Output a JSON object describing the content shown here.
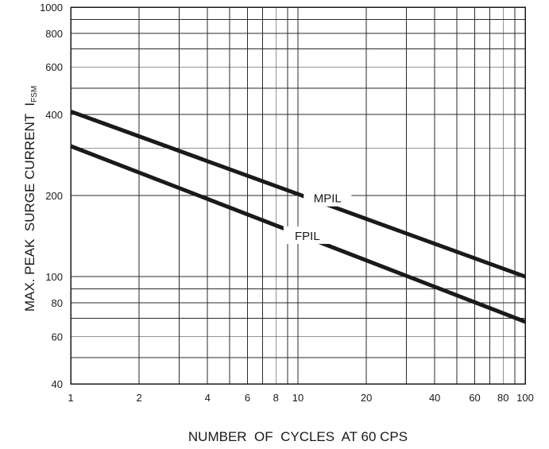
{
  "chart_data": {
    "type": "line",
    "title": "",
    "xlabel": "NUMBER  OF  CYCLES  AT 60 CPS",
    "ylabel": "MAX. PEAK  SURGE CURRENT  I",
    "ylabel_subscript": "FSM",
    "x_scale": "log",
    "y_scale": "log",
    "xlim": [
      1,
      100
    ],
    "ylim": [
      40,
      1000
    ],
    "x_ticks": [
      1,
      2,
      4,
      6,
      8,
      10,
      20,
      40,
      60,
      80,
      100
    ],
    "x_tick_labels": [
      "1",
      "2",
      "4",
      "6",
      "8",
      "10",
      "20",
      "40",
      "60",
      "80",
      "100"
    ],
    "y_ticks": [
      40,
      60,
      80,
      100,
      200,
      400,
      600,
      800,
      1000
    ],
    "y_tick_labels": [
      "40",
      "60",
      "80",
      "100",
      "200",
      "400",
      "600",
      "800",
      "1000"
    ],
    "x_grid": [
      1,
      2,
      3,
      4,
      5,
      6,
      7,
      8,
      9,
      10,
      20,
      30,
      40,
      50,
      60,
      70,
      80,
      90,
      100
    ],
    "y_grid": [
      40,
      50,
      60,
      70,
      80,
      90,
      100,
      200,
      300,
      400,
      500,
      600,
      700,
      800,
      900,
      1000
    ],
    "grid": true,
    "legend": "none",
    "series": [
      {
        "name": "MPIL",
        "x": [
          1,
          100
        ],
        "y": [
          410,
          100
        ]
      },
      {
        "name": "FPIL",
        "x": [
          1,
          100
        ],
        "y": [
          305,
          68
        ]
      }
    ]
  }
}
